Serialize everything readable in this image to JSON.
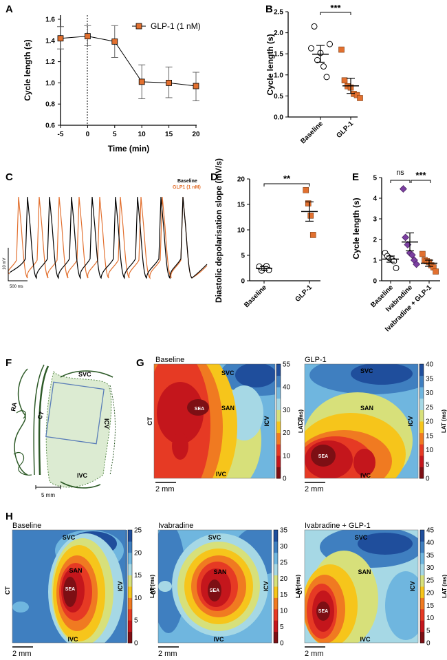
{
  "panels": {
    "A": "A",
    "B": "B",
    "C": "C",
    "D": "D",
    "E": "E",
    "F": "F",
    "G": "G",
    "H": "H"
  },
  "chart_data": [
    {
      "panel": "A",
      "type": "line",
      "x": [
        -5,
        0,
        5,
        10,
        15,
        20
      ],
      "series": [
        {
          "name": "GLP-1 (1 nM)",
          "values": [
            1.42,
            1.44,
            1.39,
            1.01,
            1.0,
            0.97
          ],
          "err_low": [
            1.32,
            1.35,
            1.24,
            0.85,
            0.86,
            0.83
          ],
          "err_high": [
            1.53,
            1.54,
            1.54,
            1.17,
            1.15,
            1.1
          ]
        }
      ],
      "xlabel": "Time (min)",
      "ylabel": "Cycle length (s)",
      "xticks": [
        "-5",
        "0",
        "5",
        "10",
        "15",
        "20"
      ],
      "yticks": [
        "0.6",
        "0.8",
        "1.0",
        "1.2",
        "1.4",
        "1.6"
      ],
      "ylim": [
        0.6,
        1.6
      ],
      "xlim": [
        -5,
        20
      ]
    },
    {
      "panel": "B",
      "type": "scatter",
      "categories": [
        "Baseline",
        "GLP-1"
      ],
      "points": [
        [
          1.63,
          2.15,
          1.35,
          1.52,
          1.2,
          0.95,
          1.73
        ],
        [
          1.6,
          0.87,
          0.73,
          0.7,
          0.55,
          0.52,
          0.45
        ]
      ],
      "means": [
        1.49,
        0.74
      ],
      "sem_low": [
        1.3,
        0.56
      ],
      "sem_high": [
        1.7,
        0.92
      ],
      "ylabel": "Cycle length (s)",
      "yticks": [
        "0.0",
        "0.5",
        "1.0",
        "1.5",
        "2.0",
        "2.5"
      ],
      "ylim": [
        0,
        2.5
      ],
      "sig": "***"
    },
    {
      "panel": "C",
      "type": "line",
      "series": [
        {
          "name": "Baseline"
        },
        {
          "name": "GLP1 (1 nM)"
        }
      ],
      "scale_y": "10 mV",
      "scale_x": "500 ms"
    },
    {
      "panel": "D",
      "type": "scatter",
      "categories": [
        "Baseline",
        "GLP-1"
      ],
      "points": [
        [
          2.8,
          2.0,
          2.5,
          2.9,
          2.1
        ],
        [
          17.8,
          15.2,
          12.8,
          9.0
        ]
      ],
      "means": [
        2.45,
        13.6
      ],
      "sem_low": [
        2.1,
        11.7
      ],
      "sem_high": [
        2.8,
        15.5
      ],
      "ylabel": "Diastolic depolarisation slope (mV/s)",
      "yticks": [
        "0",
        "5",
        "10",
        "15",
        "20"
      ],
      "ylim": [
        0,
        20
      ],
      "sig": "**"
    },
    {
      "panel": "E",
      "type": "scatter",
      "categories": [
        "Baseline",
        "Ivabradine",
        "Ivabradine + GLP-1"
      ],
      "points": [
        [
          1.35,
          1.2,
          1.1,
          1.05,
          0.95,
          0.62
        ],
        [
          4.45,
          2.1,
          1.75,
          1.35,
          1.25,
          1.0,
          0.8
        ],
        [
          1.3,
          1.0,
          0.95,
          0.9,
          0.75,
          0.65,
          0.45
        ]
      ],
      "means": [
        1.05,
        1.88,
        0.85
      ],
      "sem_low": [
        0.9,
        1.45,
        0.7
      ],
      "sem_high": [
        1.2,
        2.32,
        1.0
      ],
      "ylabel": "Cycle length (s)",
      "yticks": [
        "0",
        "1",
        "2",
        "3",
        "4",
        "5"
      ],
      "ylim": [
        0,
        5
      ],
      "sig": [
        "ns",
        "***"
      ]
    },
    {
      "panel": "G",
      "type": "heatmap",
      "maps": [
        {
          "title": "Baseline",
          "cbar_ticks": [
            "0",
            "10",
            "20",
            "30",
            "40",
            "55"
          ],
          "cbar_label": "LAT (ms)"
        },
        {
          "title": "GLP-1",
          "cbar_ticks": [
            "0",
            "5",
            "10",
            "15",
            "20",
            "25",
            "30",
            "35",
            "40"
          ],
          "cbar_label": "LAT (ms)"
        }
      ],
      "scalebar": "2 mm"
    },
    {
      "panel": "H",
      "type": "heatmap",
      "maps": [
        {
          "title": "Baseline",
          "cbar_ticks": [
            "0",
            "5",
            "10",
            "15",
            "20",
            "25"
          ],
          "cbar_label": "LAT (ms)"
        },
        {
          "title": "Ivabradine",
          "cbar_ticks": [
            "0",
            "5",
            "10",
            "15",
            "20",
            "25",
            "30",
            "35"
          ],
          "cbar_label": "LAT (ms)"
        },
        {
          "title": "Ivabradine + GLP-1",
          "cbar_ticks": [
            "0",
            "5",
            "10",
            "15",
            "20",
            "25",
            "30",
            "35",
            "40",
            "45"
          ],
          "cbar_label": "LAT (ms)"
        }
      ],
      "scalebar": "2 mm"
    }
  ],
  "anatomy": {
    "svc": "SVC",
    "ivc": "IVC",
    "icv": "ICV",
    "ct": "CT",
    "ra": "RA",
    "san": "SAN",
    "sea": "SEA",
    "scale": "5 mm"
  },
  "colors": {
    "orange": "#e2702f",
    "purple": "#7b3fa0",
    "black": "#000000"
  }
}
